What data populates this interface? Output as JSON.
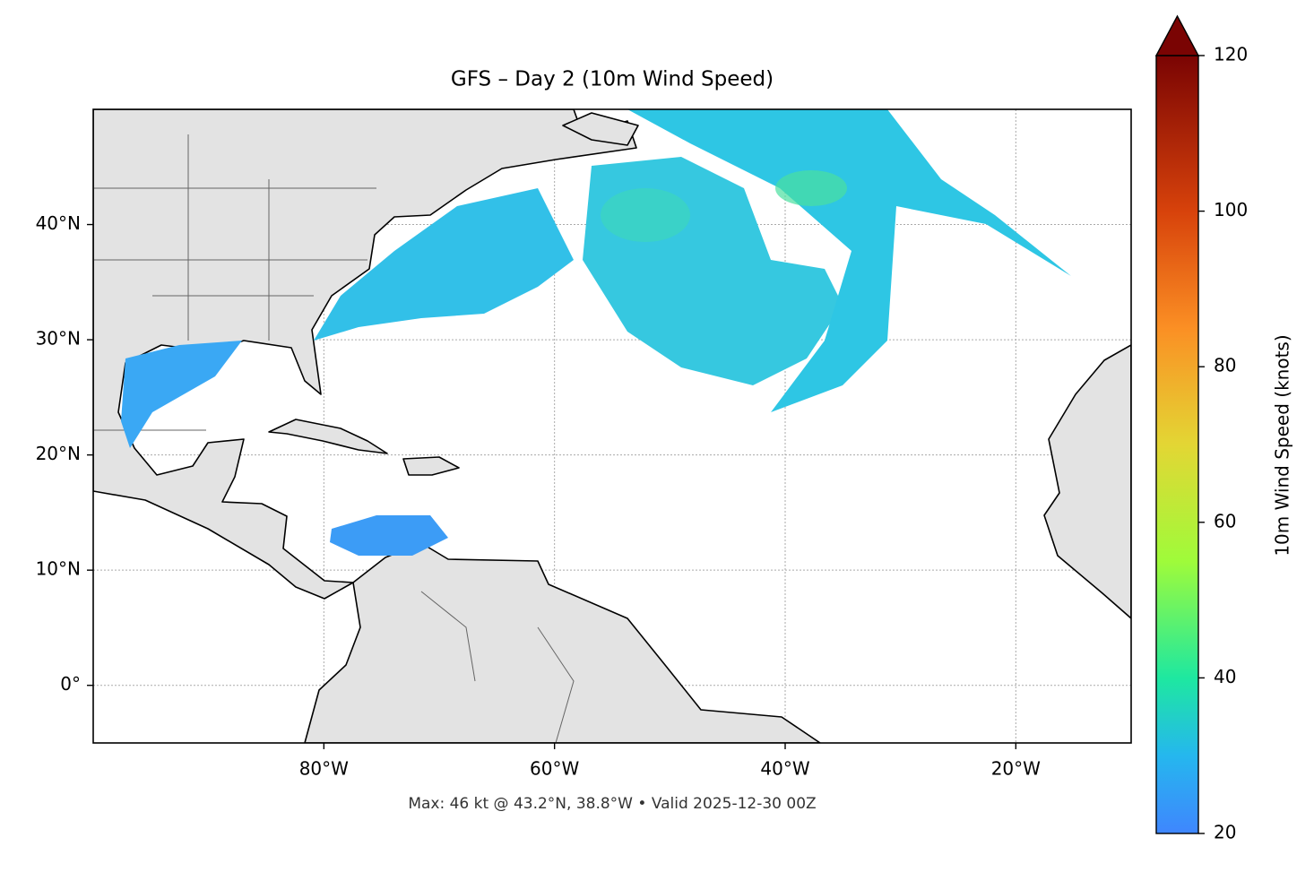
{
  "title": "GFS – Day 2 (10m Wind Speed)",
  "footer": "Max: 46 kt @ 43.2°N, 38.8°W • Valid 2025-12-30 00Z",
  "map": {
    "xlim": [
      -100,
      -10
    ],
    "ylim": [
      -5,
      50
    ],
    "xticks": [
      {
        "value": -80,
        "label": "80°W"
      },
      {
        "value": -60,
        "label": "60°W"
      },
      {
        "value": -40,
        "label": "40°W"
      },
      {
        "value": -20,
        "label": "20°W"
      }
    ],
    "yticks": [
      {
        "value": 0,
        "label": "0°"
      },
      {
        "value": 10,
        "label": "10°N"
      },
      {
        "value": 20,
        "label": "20°N"
      },
      {
        "value": 30,
        "label": "30°N"
      },
      {
        "value": 40,
        "label": "40°N"
      }
    ],
    "grid": true
  },
  "colorbar": {
    "label": "10m Wind Speed (knots)",
    "lim": [
      20,
      120
    ],
    "ticks": [
      20,
      40,
      60,
      80,
      100,
      120
    ]
  }
}
